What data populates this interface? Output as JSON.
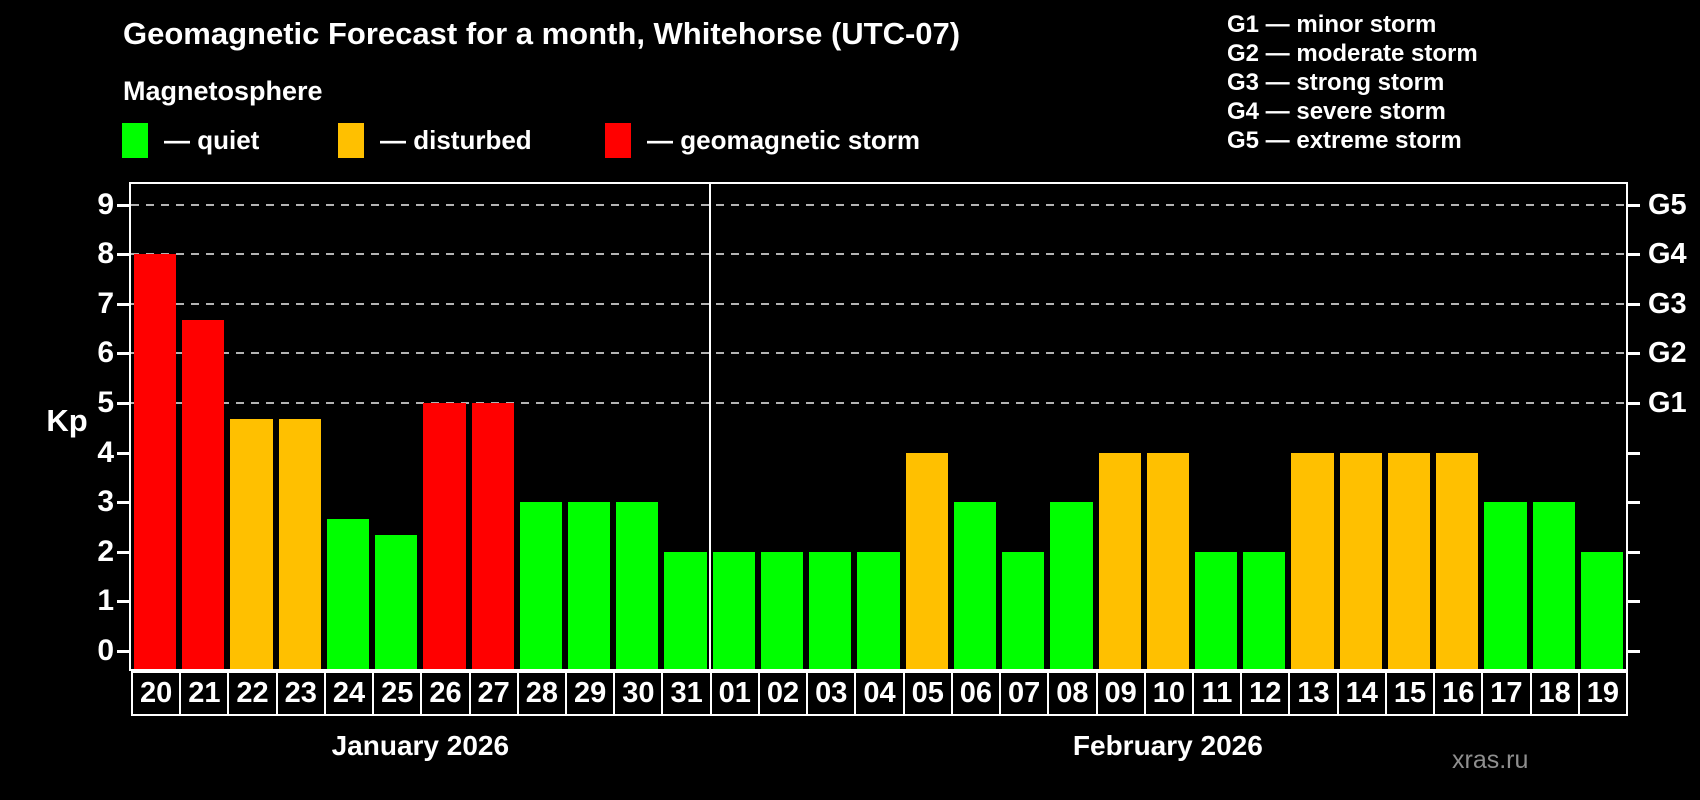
{
  "header": {
    "title": "Geomagnetic Forecast for a month, Whitehorse (UTC-07)",
    "subtitle": "Magnetosphere"
  },
  "legend": {
    "items": [
      {
        "key": "quiet",
        "label": "— quiet",
        "color": "#00ff00"
      },
      {
        "key": "disturbed",
        "label": "— disturbed",
        "color": "#ffc000"
      },
      {
        "key": "storm",
        "label": "— geomagnetic storm",
        "color": "#ff0000"
      }
    ]
  },
  "g_scale_legend": {
    "lines": [
      "G1 — minor storm",
      "G2 — moderate storm",
      "G3 — strong storm",
      "G4 — severe storm",
      "G5 — extreme storm"
    ]
  },
  "chart_data": {
    "type": "bar",
    "ylabel": "Kp",
    "ylim": [
      -0.4,
      9.4
    ],
    "yticks": [
      0,
      1,
      2,
      3,
      4,
      5,
      6,
      7,
      8,
      9
    ],
    "gridlines_at": [
      5,
      6,
      7,
      8,
      9
    ],
    "grid_style": "dashed horizontal gray lines at G-storm levels only",
    "right_axis_labels": [
      {
        "value": 5,
        "label": "G1"
      },
      {
        "value": 6,
        "label": "G2"
      },
      {
        "value": 7,
        "label": "G3"
      },
      {
        "value": 8,
        "label": "G4"
      },
      {
        "value": 9,
        "label": "G5"
      }
    ],
    "categories": [
      "20",
      "21",
      "22",
      "23",
      "24",
      "25",
      "26",
      "27",
      "28",
      "29",
      "30",
      "31",
      "01",
      "02",
      "03",
      "04",
      "05",
      "06",
      "07",
      "08",
      "09",
      "10",
      "11",
      "12",
      "13",
      "14",
      "15",
      "16",
      "17",
      "18",
      "19"
    ],
    "values": [
      8,
      6.67,
      4.67,
      4.67,
      2.67,
      2.33,
      5,
      5,
      3,
      3,
      3,
      2,
      2,
      2,
      2,
      2,
      4,
      3,
      2,
      3,
      4,
      4,
      2,
      2,
      4,
      4,
      4,
      4,
      3,
      3,
      2
    ],
    "statuses": [
      "storm",
      "storm",
      "disturbed",
      "disturbed",
      "quiet",
      "quiet",
      "storm",
      "storm",
      "quiet",
      "quiet",
      "quiet",
      "quiet",
      "quiet",
      "quiet",
      "quiet",
      "quiet",
      "disturbed",
      "quiet",
      "quiet",
      "quiet",
      "disturbed",
      "disturbed",
      "quiet",
      "quiet",
      "disturbed",
      "disturbed",
      "disturbed",
      "disturbed",
      "quiet",
      "quiet",
      "quiet"
    ],
    "months": [
      {
        "label": "January 2026",
        "start_index": 0,
        "count": 12
      },
      {
        "label": "February 2026",
        "start_index": 12,
        "count": 19
      }
    ],
    "colors": {
      "quiet": "#00ff00",
      "disturbed": "#ffc000",
      "storm": "#ff0000"
    }
  },
  "watermark": "xras.ru"
}
